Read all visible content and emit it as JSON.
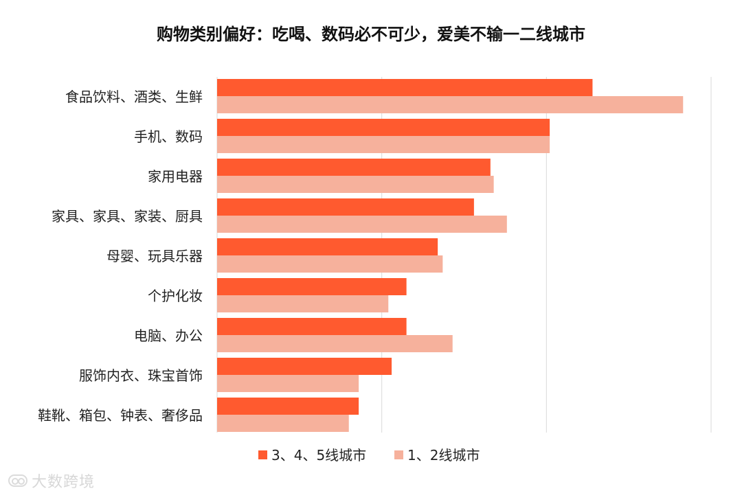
{
  "colors": {
    "series1": "#ff5a2f",
    "series2": "#f6b19c",
    "grid": "#d9d9d9",
    "text": "#222222"
  },
  "chart_data": {
    "type": "bar",
    "orientation": "horizontal",
    "title": "购物类别偏好：吃喝、数码必不可少，爱美不输一二线城市",
    "categories": [
      "食品饮料、酒类、生鲜",
      "手机、数码",
      "家用电器",
      "家具、家具、家装、厨具",
      "母婴、玩具乐器",
      "个护化妆",
      "电脑、办公",
      "服饰内衣、珠宝首饰",
      "鞋靴、箱包、钟表、奢侈品"
    ],
    "series": [
      {
        "name": "3、4、5线城市",
        "values": [
          22.8,
          20.2,
          16.6,
          15.6,
          13.4,
          11.5,
          11.5,
          10.6,
          8.6
        ]
      },
      {
        "name": "1、2线城市",
        "values": [
          28.3,
          20.2,
          16.8,
          17.6,
          13.7,
          10.4,
          14.3,
          8.6,
          8.0
        ]
      }
    ],
    "xlim": [
      0,
      30
    ],
    "xticks": [
      0,
      10,
      20,
      30
    ],
    "grid": "vertical",
    "legend": "bottom"
  },
  "watermark": {
    "text": "大数跨境"
  }
}
